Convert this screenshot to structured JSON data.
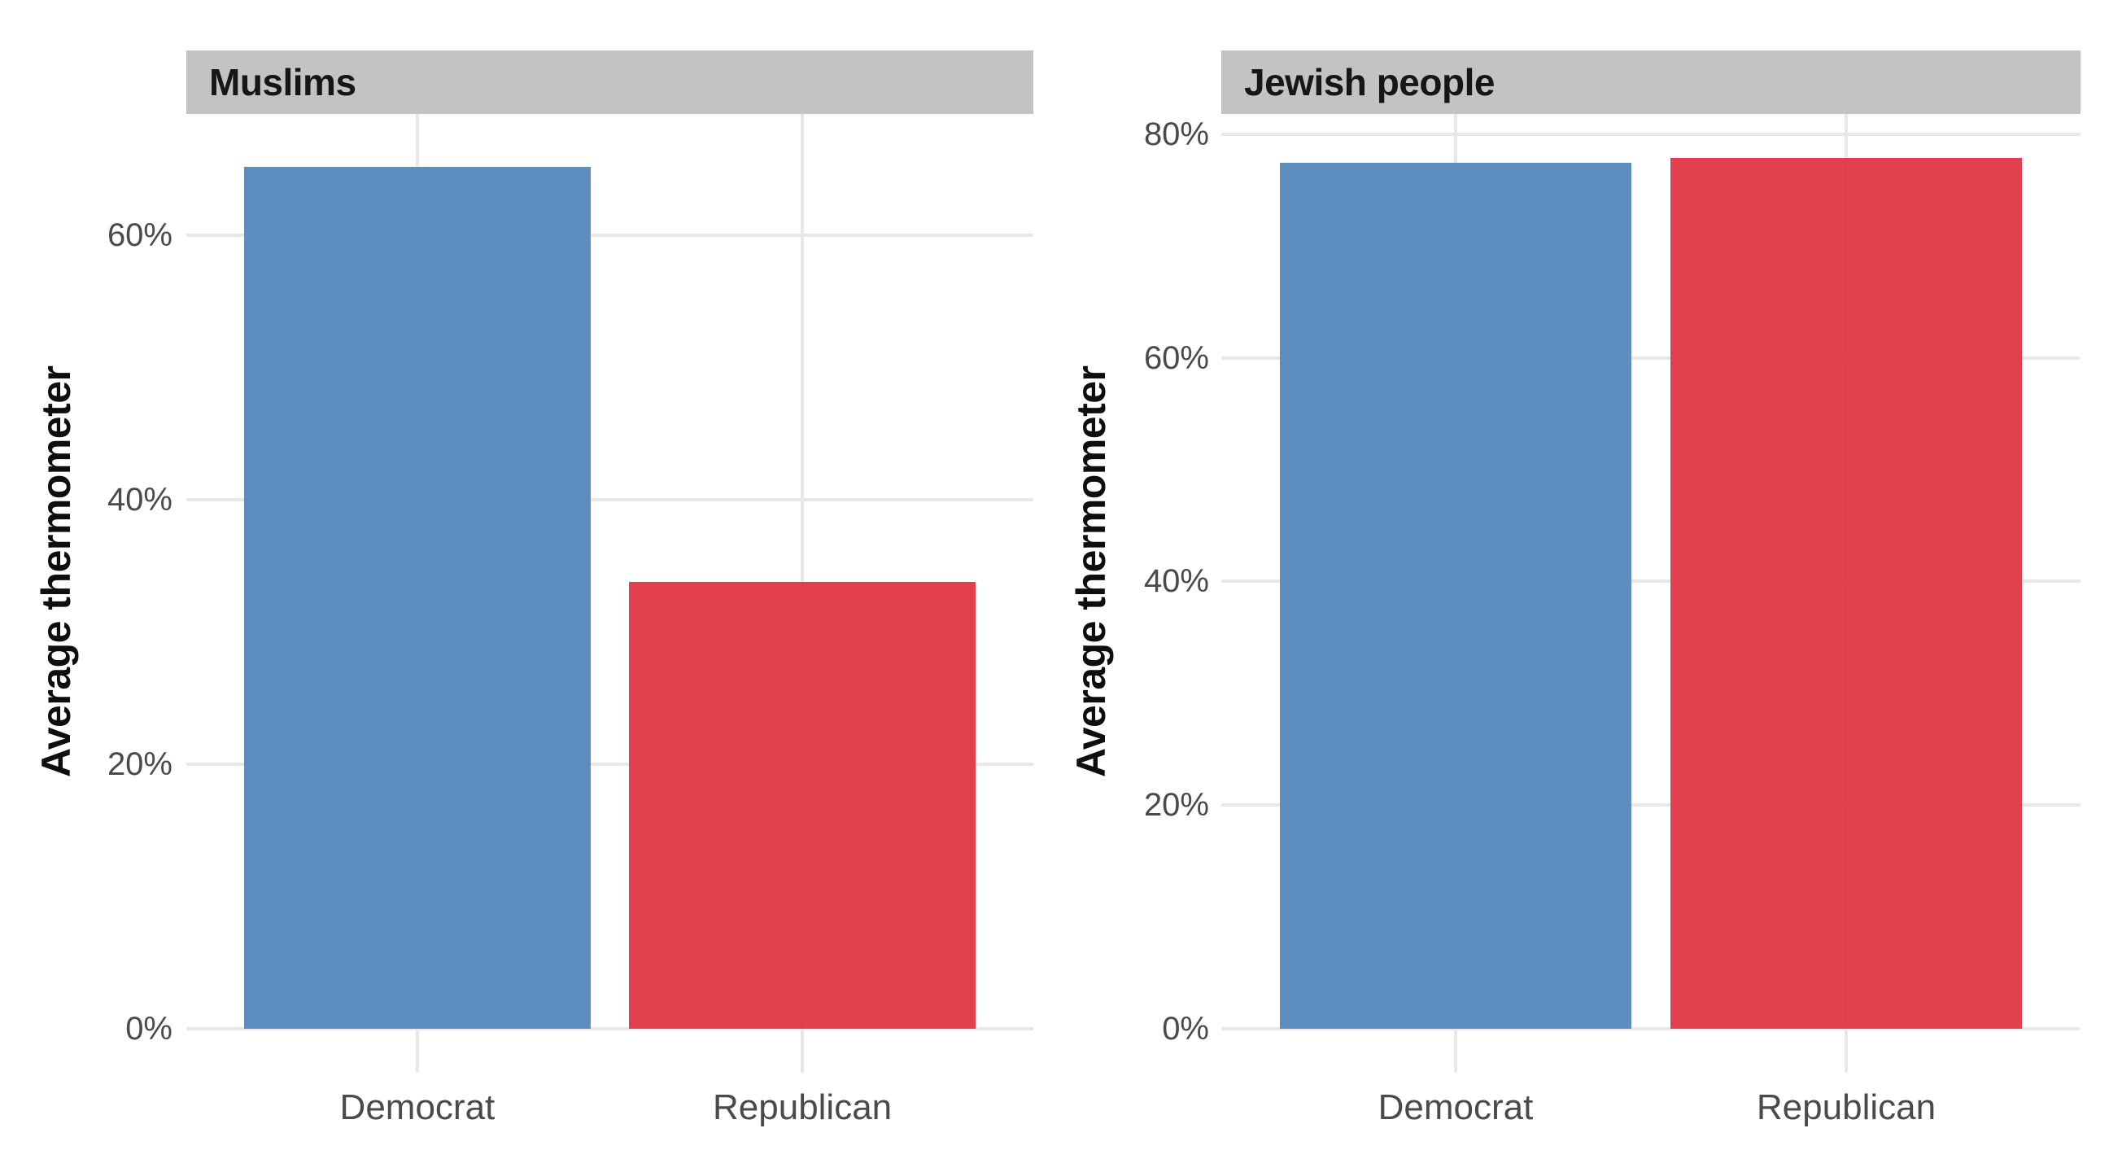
{
  "figure": {
    "background": "#ffffff",
    "description": "Two-panel faceted bar chart of average feeling thermometer by party"
  },
  "chart_data": [
    {
      "type": "bar",
      "title": "Muslims",
      "categories": [
        "Democrat",
        "Republican"
      ],
      "values": [
        65.2,
        33.8
      ],
      "ylabel": "Average thermometer",
      "xlabel": "",
      "yticks": [
        0,
        20,
        40,
        60
      ],
      "ytick_labels": [
        "0%",
        "20%",
        "40%",
        "60%"
      ],
      "ylim": [
        0,
        69.2
      ],
      "bar_colors": [
        "#5285bb",
        "#e03042"
      ],
      "grid": "major horizontal and vertical, light gray, no axis lines",
      "legend_position": "none"
    },
    {
      "type": "bar",
      "title": "Jewish people",
      "categories": [
        "Democrat",
        "Republican"
      ],
      "values": [
        77.4,
        77.9
      ],
      "ylabel": "Average thermometer",
      "xlabel": "",
      "yticks": [
        0,
        20,
        40,
        60,
        80
      ],
      "ytick_labels": [
        "0%",
        "20%",
        "40%",
        "60%",
        "80%"
      ],
      "ylim": [
        0,
        81.8
      ],
      "bar_colors": [
        "#5285bb",
        "#e03042"
      ],
      "grid": "major horizontal and vertical, light gray, no axis lines",
      "legend_position": "none"
    }
  ],
  "style": {
    "strip_background": "#c3c3c3",
    "strip_text_color": "#161616",
    "grid_color": "#e8e8e8",
    "tick_label_color": "#4a4a4a",
    "axis_title_color": "#0e0e0e",
    "democrat_blue": "#5285bb",
    "republican_red": "#e03042"
  }
}
